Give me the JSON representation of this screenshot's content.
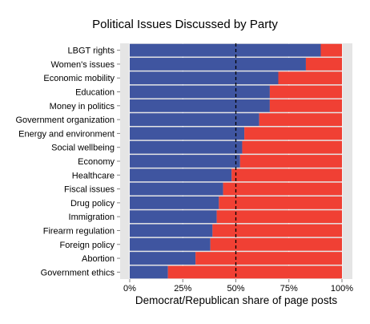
{
  "chart_data": {
    "type": "bar",
    "orientation": "horizontal",
    "stacked": true,
    "title": "Political Issues Discussed by Party",
    "xlabel": "Democrat/Republican share of page posts",
    "ylabel": "",
    "xlim": [
      0,
      100
    ],
    "x_ticks": [
      "0%",
      "25%",
      "50%",
      "75%",
      "100%"
    ],
    "reference_line": {
      "value": 50,
      "style": "dashed"
    },
    "categories": [
      "LBGT rights",
      "Women's issues",
      "Economic mobility",
      "Education",
      "Money in politics",
      "Government organization",
      "Energy and environment",
      "Social wellbeing",
      "Economy",
      "Healthcare",
      "Fiscal issues",
      "Drug policy",
      "Immigration",
      "Firearm regulation",
      "Foreign policy",
      "Abortion",
      "Government ethics"
    ],
    "series": [
      {
        "color": "#3f55a0",
        "values": [
          90,
          83,
          70,
          66,
          66,
          61,
          54,
          53,
          52,
          48,
          44,
          42,
          41,
          39,
          38,
          31,
          18
        ]
      },
      {
        "color": "#f04034",
        "values": [
          10,
          17,
          30,
          34,
          34,
          39,
          46,
          47,
          48,
          52,
          56,
          58,
          59,
          61,
          62,
          69,
          82
        ]
      }
    ],
    "panel_background": "#e5e5e5",
    "grid": true
  }
}
